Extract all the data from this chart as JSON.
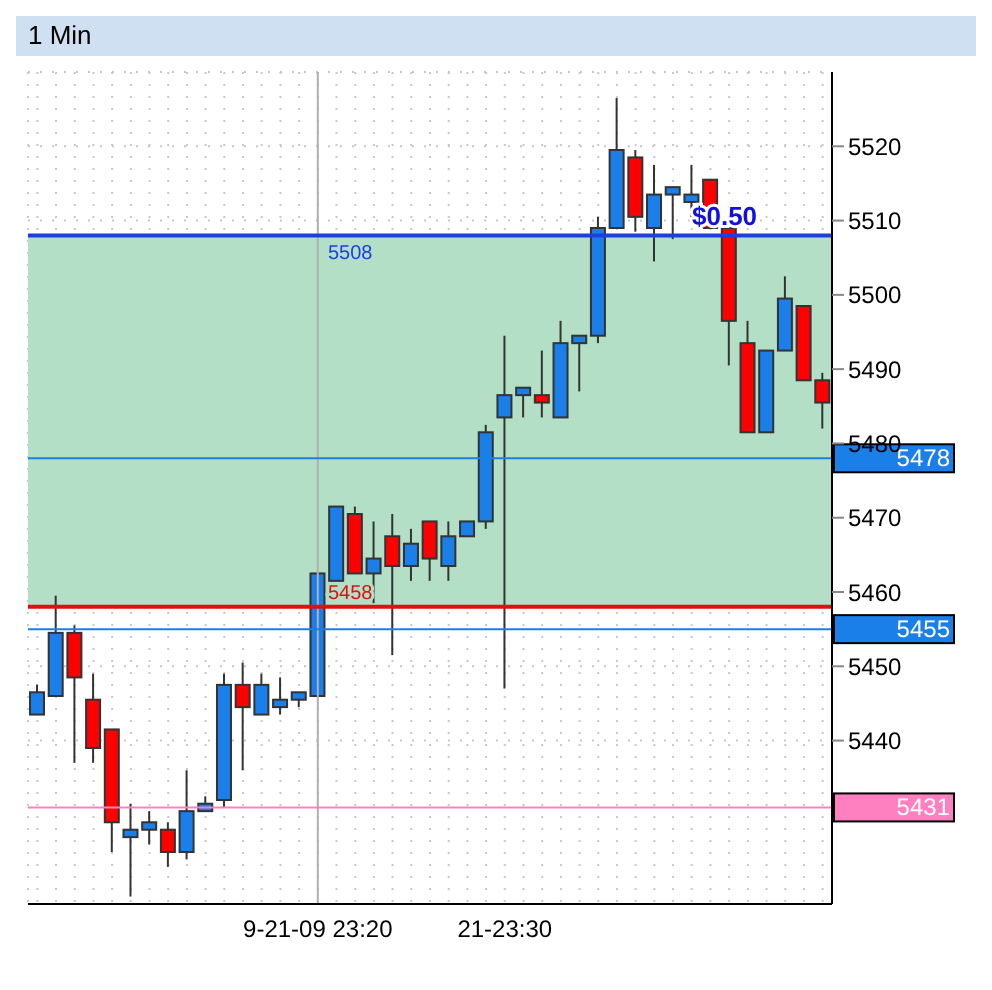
{
  "chart_data": {
    "type": "candlestick",
    "title": "1 Min",
    "categories": [
      null,
      null,
      null,
      null,
      null,
      null,
      null,
      null,
      null,
      null,
      null,
      null,
      null,
      null,
      null,
      "9-21-09 23:20",
      null,
      null,
      null,
      null,
      null,
      null,
      null,
      null,
      null,
      "21-23:30",
      null,
      null,
      null,
      null,
      null,
      null,
      null,
      null,
      null,
      null,
      null,
      null,
      null,
      null,
      null,
      null,
      null
    ],
    "ohlc": [
      [
        5443.5,
        5447.5,
        5443.5,
        5446.5
      ],
      [
        5446,
        5459.5,
        5446,
        5454.5
      ],
      [
        5454.5,
        5455.5,
        5437,
        5448.5
      ],
      [
        5445.5,
        5449,
        5437,
        5439
      ],
      [
        5441.5,
        5441.5,
        5425,
        5429
      ],
      [
        5427,
        5431.5,
        5419,
        5428
      ],
      [
        5428,
        5430.5,
        5426,
        5429
      ],
      [
        5428,
        5429,
        5423,
        5425
      ],
      [
        5425,
        5436,
        5424,
        5430.5
      ],
      [
        5430.5,
        5432.5,
        5430.5,
        5431.5
      ],
      [
        5432,
        5449,
        5431,
        5447.5
      ],
      [
        5447.5,
        5450.5,
        5436,
        5444.5
      ],
      [
        5443.5,
        5449,
        5443.5,
        5447.5
      ],
      [
        5444.5,
        5448.5,
        5443.5,
        5445.5
      ],
      [
        5445.5,
        5446.5,
        5444.5,
        5446.5
      ],
      [
        5446,
        5462.5,
        5446,
        5462.5
      ],
      [
        5461.5,
        5471.5,
        5461.5,
        5471.5
      ],
      [
        5470.5,
        5471.5,
        5462.5,
        5462.5
      ],
      [
        5462.5,
        5469.5,
        5458.5,
        5464.5
      ],
      [
        5467.5,
        5470.5,
        5451.5,
        5463.5
      ],
      [
        5463.5,
        5468.5,
        5461.5,
        5466.5
      ],
      [
        5469.5,
        5469.5,
        5461.5,
        5464.5
      ],
      [
        5463.5,
        5469.5,
        5461.5,
        5467.5
      ],
      [
        5467.5,
        5469.5,
        5467.5,
        5469.5
      ],
      [
        5469.5,
        5482.5,
        5468.5,
        5481.5
      ],
      [
        5483.5,
        5494.5,
        5447,
        5486.5
      ],
      [
        5486.5,
        5487.5,
        5483.5,
        5487.5
      ],
      [
        5486.5,
        5492.5,
        5483.5,
        5485.5
      ],
      [
        5483.5,
        5496.5,
        5483.5,
        5493.5
      ],
      [
        5493.5,
        5494.5,
        5487,
        5494.5
      ],
      [
        5494.5,
        5510.5,
        5493.5,
        5509
      ],
      [
        5509,
        5526.5,
        5509,
        5519.5
      ],
      [
        5518.5,
        5519.5,
        5508.5,
        5510.5
      ],
      [
        5509,
        5517.5,
        5504.5,
        5513.5
      ],
      [
        5513.5,
        5514.5,
        5507.5,
        5514.5
      ],
      [
        5512.5,
        5517.5,
        5510.5,
        5513.5
      ],
      [
        5515.5,
        5515.5,
        5509,
        5509
      ],
      [
        5509,
        5509,
        5490.5,
        5496.5
      ],
      [
        5493.5,
        5496.5,
        5481.5,
        5481.5
      ],
      [
        5481.5,
        5492.5,
        5481.5,
        5492.5
      ],
      [
        5492.5,
        5502.5,
        5492.5,
        5499.5
      ],
      [
        5498.5,
        5498.5,
        5488.5,
        5488.5
      ],
      [
        5488.5,
        5489.5,
        5482,
        5485.5
      ]
    ],
    "colors": [
      "#1a7fe8",
      "#1a7fe8",
      "#ff0000",
      "#ff0000",
      "#ff0000",
      "#1a7fe8",
      "#1a7fe8",
      "#ff0000",
      "#1a7fe8",
      "#1a7fe8",
      "#1a7fe8",
      "#ff0000",
      "#1a7fe8",
      "#1a7fe8",
      "#1a7fe8",
      "#1a7fe8",
      "#1a7fe8",
      "#ff0000",
      "#1a7fe8",
      "#ff0000",
      "#1a7fe8",
      "#ff0000",
      "#1a7fe8",
      "#1a7fe8",
      "#1a7fe8",
      "#1a7fe8",
      "#1a7fe8",
      "#ff0000",
      "#1a7fe8",
      "#1a7fe8",
      "#1a7fe8",
      "#1a7fe8",
      "#ff0000",
      "#1a7fe8",
      "#1a7fe8",
      "#1a7fe8",
      "#ff0000",
      "#ff0000",
      "#ff0000",
      "#1a7fe8",
      "#1a7fe8",
      "#ff0000",
      "#ff0000"
    ],
    "ylim": [
      5418,
      5530
    ],
    "yticks": [
      5440,
      5450,
      5460,
      5470,
      5480,
      5490,
      5500,
      5510,
      5520
    ],
    "grid": true,
    "legend": false,
    "bands": [
      {
        "axis": "y",
        "from": 5458,
        "to": 5508,
        "color": "#b3dfc7"
      }
    ],
    "ref_lines": [
      {
        "axis": "y",
        "value": 5508,
        "label": "5508",
        "color": "#1e3ee0"
      },
      {
        "axis": "y",
        "value": 5458,
        "label": "5458",
        "color": "#e01010"
      },
      {
        "axis": "y",
        "value": 5478,
        "label": "5478",
        "color": "#1a7fe8"
      },
      {
        "axis": "y",
        "value": 5455,
        "label": "5455",
        "color": "#1a7fe8"
      },
      {
        "axis": "y",
        "value": 5431,
        "label": "5431",
        "color": "#ff80c0"
      },
      {
        "axis": "x",
        "value": "9-21-09 23:20",
        "color": "#b0b0b0"
      }
    ],
    "annotations": [
      {
        "text": "$0.50",
        "y": 5508
      }
    ]
  }
}
